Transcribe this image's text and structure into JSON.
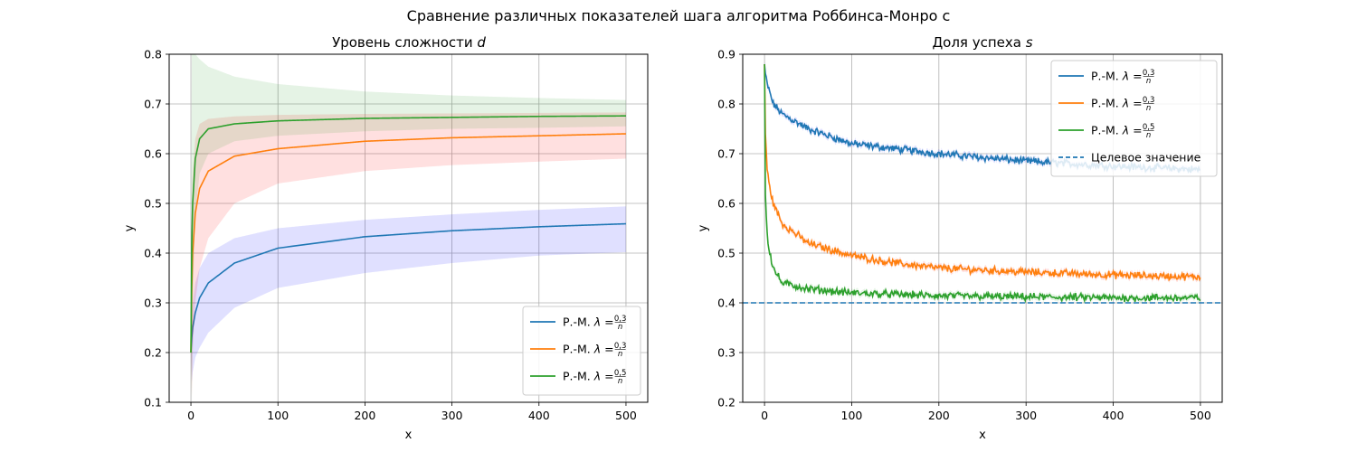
{
  "figure": {
    "suptitle": "Сравнение различных показателей шага алгоритма Роббинса-Монро с"
  },
  "chart_data": [
    {
      "type": "line",
      "title": "Уровень сложности",
      "title_var": "d",
      "xlabel": "x",
      "ylabel": "y",
      "xlim": [
        -25,
        525
      ],
      "ylim": [
        0.1,
        0.8
      ],
      "xticks": [
        0,
        100,
        200,
        300,
        400,
        500
      ],
      "yticks": [
        0.1,
        0.2,
        0.3,
        0.4,
        0.5,
        0.6,
        0.7,
        0.8
      ],
      "grid": true,
      "legend_position": "lower-right",
      "series": [
        {
          "name": "Р.-М. λ = 0,3/n",
          "color": "#1f77b4",
          "band_color": "#0000ff",
          "x": [
            0,
            1,
            2,
            5,
            10,
            20,
            50,
            100,
            200,
            300,
            400,
            500
          ],
          "y": [
            0.2,
            0.23,
            0.25,
            0.28,
            0.31,
            0.34,
            0.38,
            0.41,
            0.433,
            0.445,
            0.453,
            0.459
          ],
          "lower": [
            0.2,
            0.14,
            0.16,
            0.19,
            0.21,
            0.24,
            0.29,
            0.33,
            0.36,
            0.38,
            0.395,
            0.402
          ],
          "upper": [
            0.2,
            0.27,
            0.3,
            0.34,
            0.37,
            0.4,
            0.43,
            0.45,
            0.467,
            0.478,
            0.487,
            0.494
          ]
        },
        {
          "name": "Р.-М. λ = 0,3/n",
          "color": "#ff7f0e",
          "band_color": "#ff0000",
          "x": [
            0,
            1,
            2,
            5,
            10,
            20,
            50,
            100,
            200,
            300,
            400,
            500
          ],
          "y": [
            0.2,
            0.33,
            0.4,
            0.48,
            0.53,
            0.565,
            0.595,
            0.61,
            0.625,
            0.632,
            0.636,
            0.64
          ],
          "lower": [
            0.2,
            0.11,
            0.2,
            0.3,
            0.37,
            0.43,
            0.5,
            0.54,
            0.565,
            0.577,
            0.584,
            0.59
          ],
          "upper": [
            0.2,
            0.5,
            0.56,
            0.63,
            0.66,
            0.67,
            0.675,
            0.678,
            0.68,
            0.681,
            0.682,
            0.683
          ]
        },
        {
          "name": "Р.-М. λ = 0,5/n",
          "color": "#2ca02c",
          "band_color": "#2ca02c",
          "x": [
            0,
            1,
            2,
            5,
            10,
            20,
            50,
            100,
            200,
            300,
            400,
            500
          ],
          "y": [
            0.2,
            0.42,
            0.5,
            0.59,
            0.63,
            0.65,
            0.66,
            0.666,
            0.671,
            0.673,
            0.675,
            0.676
          ],
          "lower": [
            0.2,
            0.1,
            0.3,
            0.48,
            0.56,
            0.6,
            0.625,
            0.636,
            0.645,
            0.65,
            0.652,
            0.655
          ],
          "upper": [
            0.2,
            0.8,
            0.8,
            0.8,
            0.79,
            0.775,
            0.755,
            0.74,
            0.725,
            0.717,
            0.712,
            0.708
          ]
        }
      ]
    },
    {
      "type": "line",
      "title": "Доля успеха",
      "title_var": "s",
      "xlabel": "x",
      "ylabel": "y",
      "xlim": [
        -25,
        525
      ],
      "ylim": [
        0.2,
        0.9
      ],
      "xticks": [
        0,
        100,
        200,
        300,
        400,
        500
      ],
      "yticks": [
        0.2,
        0.3,
        0.4,
        0.5,
        0.6,
        0.7,
        0.8,
        0.9
      ],
      "grid": true,
      "legend_position": "upper-right",
      "noise_amplitude": 0.006,
      "series": [
        {
          "name": "Р.-М. λ = 0,3/n",
          "color": "#1f77b4",
          "band_color": "#0000ff",
          "x": [
            0,
            1,
            3,
            10,
            20,
            50,
            100,
            150,
            200,
            300,
            400,
            500
          ],
          "y": [
            0.88,
            0.86,
            0.84,
            0.8,
            0.78,
            0.75,
            0.72,
            0.71,
            0.7,
            0.685,
            0.675,
            0.668
          ]
        },
        {
          "name": "Р.-М. λ = 0,3/n",
          "color": "#ff7f0e",
          "band_color": "#ff0000",
          "x": [
            0,
            1,
            3,
            5,
            10,
            20,
            50,
            100,
            150,
            200,
            300,
            400,
            500
          ],
          "y": [
            0.88,
            0.74,
            0.67,
            0.64,
            0.6,
            0.56,
            0.52,
            0.495,
            0.48,
            0.47,
            0.462,
            0.456,
            0.452
          ]
        },
        {
          "name": "Р.-М. λ = 0,5/n",
          "color": "#2ca02c",
          "band_color": "#2ca02c",
          "x": [
            0,
            1,
            3,
            5,
            10,
            20,
            50,
            100,
            200,
            300,
            400,
            500
          ],
          "y": [
            0.88,
            0.62,
            0.54,
            0.51,
            0.47,
            0.44,
            0.428,
            0.42,
            0.414,
            0.412,
            0.41,
            0.41
          ]
        }
      ],
      "target": {
        "name": "Целевое значение",
        "y": 0.4,
        "color": "#1f77b4",
        "style": "dashed"
      }
    }
  ]
}
